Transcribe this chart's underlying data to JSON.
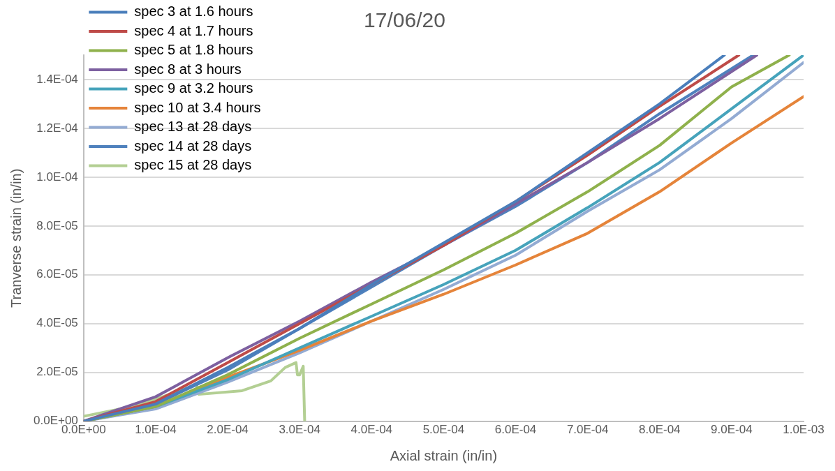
{
  "chart_data": {
    "type": "line",
    "title": "17/06/20",
    "xlabel": "Axial strain (in/in)",
    "ylabel": "Tranverse strain (in/in)",
    "xlim": [
      0,
      0.001
    ],
    "ylim": [
      0,
      0.00015
    ],
    "xticks": [
      {
        "value": 0,
        "label": "0.0E+00"
      },
      {
        "value": 0.0001,
        "label": "1.0E-04"
      },
      {
        "value": 0.0002,
        "label": "2.0E-04"
      },
      {
        "value": 0.0003,
        "label": "3.0E-04"
      },
      {
        "value": 0.0004,
        "label": "4.0E-04"
      },
      {
        "value": 0.0005,
        "label": "5.0E-04"
      },
      {
        "value": 0.0006,
        "label": "6.0E-04"
      },
      {
        "value": 0.0007,
        "label": "7.0E-04"
      },
      {
        "value": 0.0008,
        "label": "8.0E-04"
      },
      {
        "value": 0.0009,
        "label": "9.0E-04"
      },
      {
        "value": 0.001,
        "label": "1.0E-03"
      }
    ],
    "yticks": [
      {
        "value": 0,
        "label": "0.0E+00"
      },
      {
        "value": 2e-05,
        "label": "2.0E-05"
      },
      {
        "value": 4e-05,
        "label": "4.0E-05"
      },
      {
        "value": 6e-05,
        "label": "6.0E-05"
      },
      {
        "value": 8e-05,
        "label": "8.0E-05"
      },
      {
        "value": 0.0001,
        "label": "1.0E-04"
      },
      {
        "value": 0.00012,
        "label": "1.2E-04"
      },
      {
        "value": 0.00014,
        "label": "1.4E-04"
      }
    ],
    "grid": "y",
    "legend": "top left",
    "marker": "none",
    "series": [
      {
        "name": "spec 3 at 1.6 hours",
        "color": "#4a7ebb",
        "x": [
          0,
          0.0001,
          0.0002,
          0.0003,
          0.0004,
          0.0005,
          0.0006,
          0.0007,
          0.0008,
          0.00089
        ],
        "values": [
          0,
          7e-06,
          2.2e-05,
          3.8e-05,
          5.6e-05,
          7.3e-05,
          9e-05,
          0.00011,
          0.00013,
          0.00015
        ]
      },
      {
        "name": "spec 4 at 1.7 hours",
        "color": "#be4b48",
        "x": [
          0,
          0.0001,
          0.0002,
          0.0003,
          0.0004,
          0.0005,
          0.0006,
          0.0007,
          0.0008,
          0.00091
        ],
        "values": [
          0,
          8e-06,
          2.4e-05,
          4e-05,
          5.6e-05,
          7.2e-05,
          9e-05,
          0.000109,
          0.000129,
          0.00015
        ]
      },
      {
        "name": "spec 5 at 1.8 hours",
        "color": "#8fb14c",
        "x": [
          0,
          0.0001,
          0.0002,
          0.0003,
          0.0004,
          0.0005,
          0.0006,
          0.0007,
          0.0008,
          0.0009,
          0.00098
        ],
        "values": [
          0,
          6e-06,
          1.9e-05,
          3.4e-05,
          4.8e-05,
          6.2e-05,
          7.7e-05,
          9.4e-05,
          0.000113,
          0.000137,
          0.00015
        ]
      },
      {
        "name": "spec 8 at 3 hours",
        "color": "#7d60a0",
        "x": [
          0,
          0.0001,
          0.0002,
          0.0003,
          0.0004,
          0.0005,
          0.0006,
          0.0007,
          0.0008,
          0.000935
        ],
        "values": [
          0,
          1e-05,
          2.6e-05,
          4.1e-05,
          5.7e-05,
          7.2e-05,
          8.9e-05,
          0.000106,
          0.000124,
          0.00015
        ]
      },
      {
        "name": "spec 9 at 3.2 hours",
        "color": "#46a3bb",
        "x": [
          0,
          0.0001,
          0.0002,
          0.0003,
          0.0004,
          0.0005,
          0.0006,
          0.0007,
          0.0008,
          0.0009,
          0.001
        ],
        "values": [
          0,
          6e-06,
          1.7e-05,
          3e-05,
          4.3e-05,
          5.6e-05,
          7e-05,
          8.75e-05,
          0.000106,
          0.000128,
          0.00015
        ]
      },
      {
        "name": "spec 10 at 3.4 hours",
        "color": "#e5843a",
        "x": [
          0,
          0.0001,
          0.0002,
          0.0003,
          0.0004,
          0.0005,
          0.0006,
          0.0007,
          0.0008,
          0.0009,
          0.001
        ],
        "values": [
          0,
          6e-06,
          1.8e-05,
          2.9e-05,
          4.1e-05,
          5.2e-05,
          6.4e-05,
          7.7e-05,
          9.4e-05,
          0.000114,
          0.000133
        ]
      },
      {
        "name": "spec 13 at 28 days",
        "color": "#93abd3",
        "x": [
          0,
          0.0001,
          0.0002,
          0.0003,
          0.0004,
          0.0005,
          0.0006,
          0.0007,
          0.0008,
          0.0009,
          0.001
        ],
        "values": [
          0,
          5e-06,
          1.6e-05,
          2.8e-05,
          4.1e-05,
          5.4e-05,
          6.8e-05,
          8.6e-05,
          0.000103,
          0.000124,
          0.000147
        ]
      },
      {
        "name": "spec 14 at 28 days",
        "color": "#4f81bd",
        "x": [
          0,
          0.0001,
          0.0002,
          0.0003,
          0.0004,
          0.0005,
          0.0006,
          0.0007,
          0.0008,
          0.00093
        ],
        "values": [
          0,
          7e-06,
          2.1e-05,
          3.8e-05,
          5.5e-05,
          7.2e-05,
          8.8e-05,
          0.000106,
          0.000126,
          0.00015
        ]
      },
      {
        "name": "spec 15 at 28 days",
        "color": "#b3cf93",
        "x": [
          0,
          5e-05,
          0.0001,
          0.000157,
          0.00016,
          0.00022,
          0.00026,
          0.00028,
          0.000295,
          0.000297,
          0.0003,
          0.000305,
          0.000307
        ],
        "values": [
          2e-06,
          5e-06,
          9e-06,
          1.5e-05,
          1.1e-05,
          1.25e-05,
          1.65e-05,
          2.2e-05,
          2.4e-05,
          1.9e-05,
          1.9e-05,
          2.25e-05,
          0
        ]
      }
    ]
  }
}
